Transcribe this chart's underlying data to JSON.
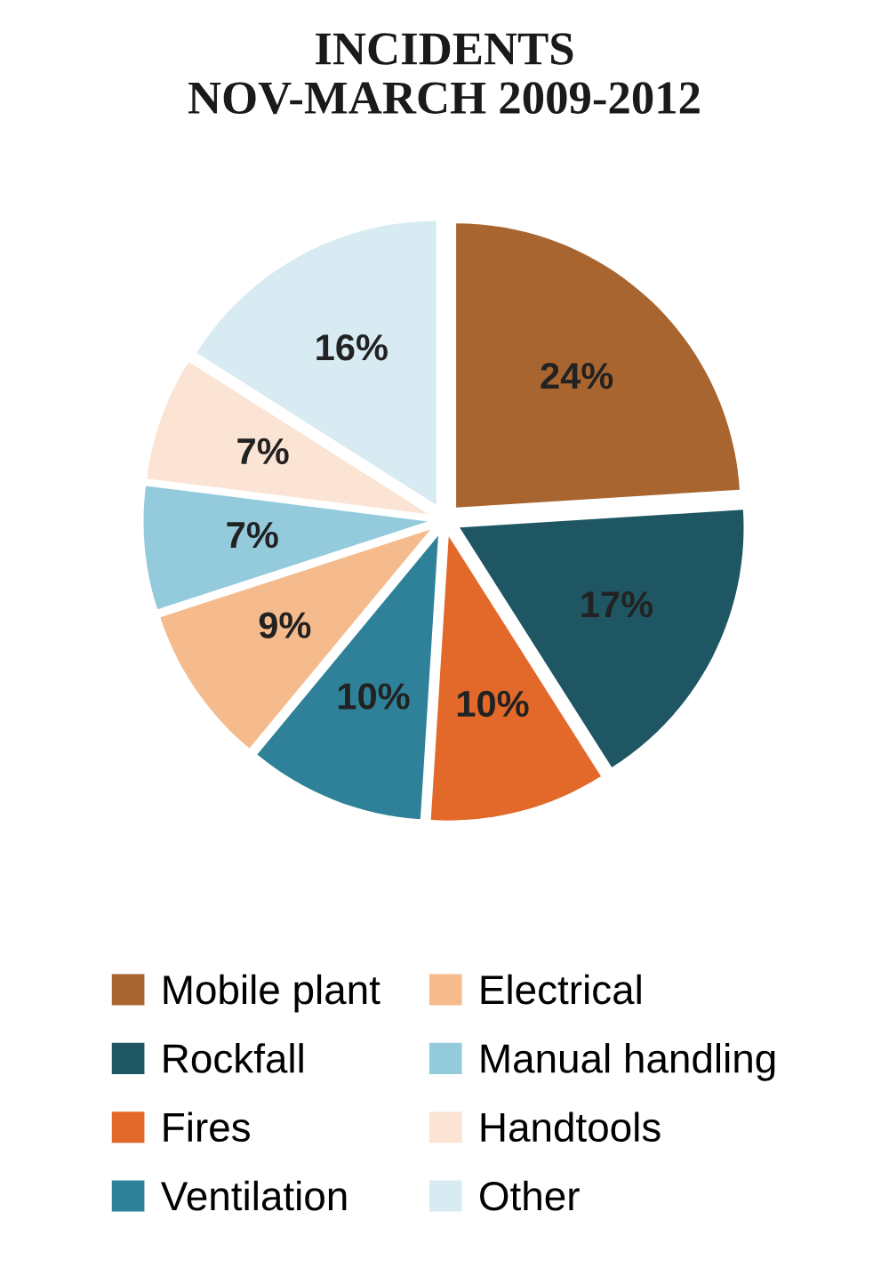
{
  "chart_data": {
    "type": "pie",
    "title": "INCIDENTS\nNOV-MARCH 2009-2012",
    "categories": [
      "Mobile plant",
      "Rockfall",
      "Fires",
      "Ventilation",
      "Electrical",
      "Manual handling",
      "Handtools",
      "Other"
    ],
    "values": [
      24,
      17,
      10,
      10,
      9,
      7,
      7,
      16
    ],
    "colors": [
      "#a8652f",
      "#1f5663",
      "#e2692a",
      "#2e8199",
      "#f5bb8c",
      "#93cbdc",
      "#fbe4d3",
      "#d8ebf2"
    ],
    "value_labels": [
      "24%",
      "17%",
      "10%",
      "10%",
      "9%",
      "7%",
      "7%",
      "16%"
    ],
    "legend": "bottom"
  }
}
